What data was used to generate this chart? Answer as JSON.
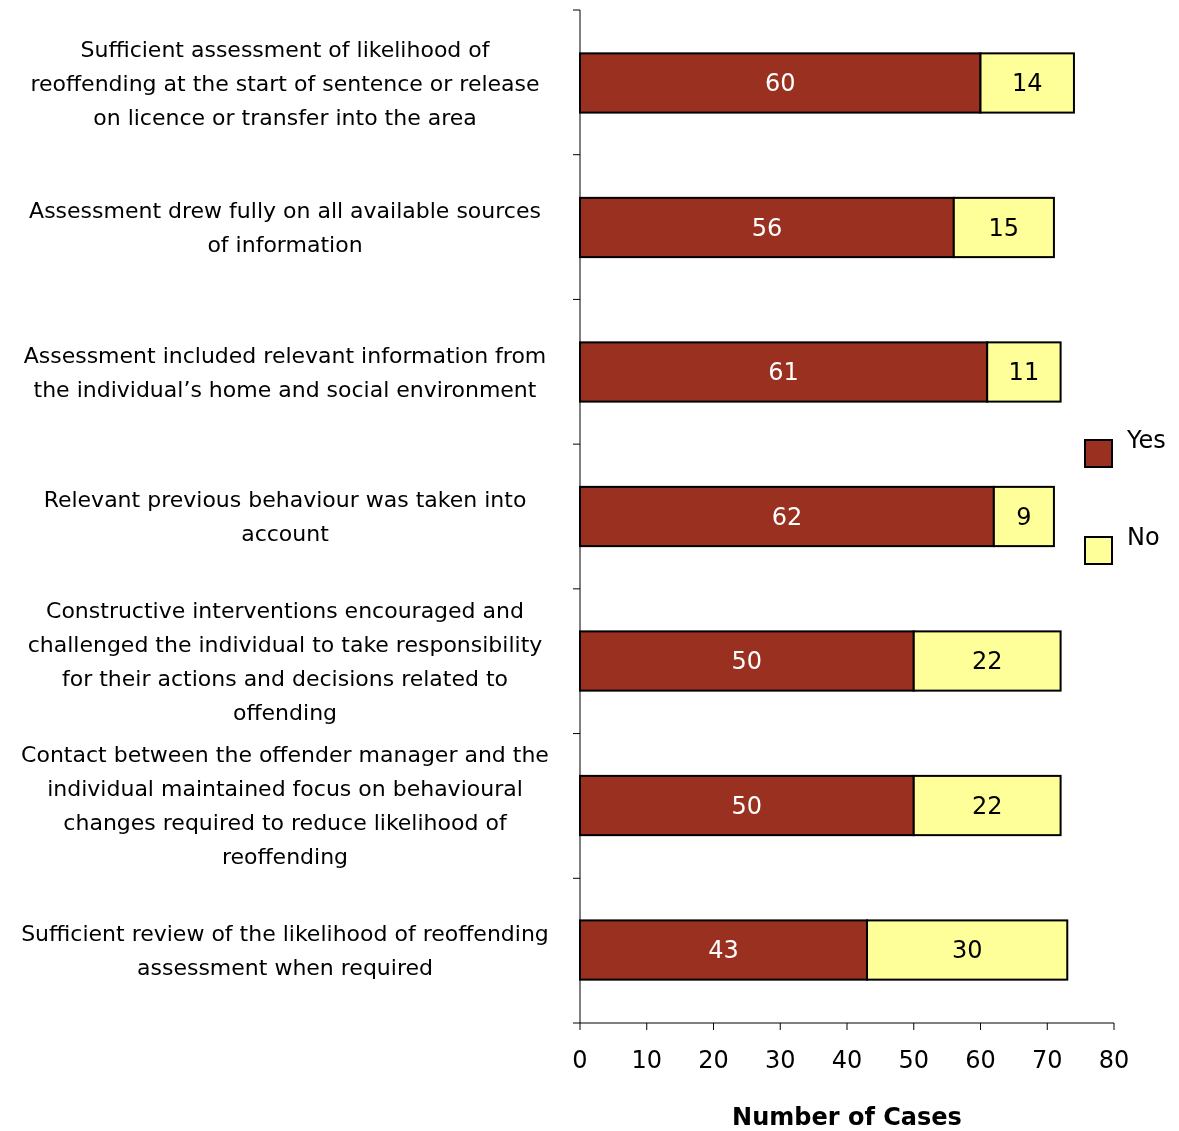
{
  "chart_data": {
    "type": "bar",
    "orientation": "horizontal",
    "stacked": true,
    "xlabel": "Number of Cases",
    "categories": [
      "Sufficient assessment of likelihood of reoffending at the start of sentence or release on licence or transfer into the area",
      "Assessment drew fully on all available sources of information",
      "Assessment included relevant information from the individual’s home and social environment",
      "Relevant previous behaviour was taken into account",
      "Constructive interventions encouraged and challenged the individual to take responsibility for their actions and decisions related to offending",
      "Contact between the offender manager and the individual maintained focus on behavioural changes required to reduce likelihood of reoffending",
      "Sufficient review of the likelihood of reoffending assessment when required"
    ],
    "series": [
      {
        "name": "Yes",
        "color": "#993020",
        "values": [
          60,
          56,
          61,
          62,
          50,
          50,
          43
        ]
      },
      {
        "name": "No",
        "color": "#ffff99",
        "values": [
          14,
          15,
          11,
          9,
          22,
          22,
          30
        ]
      }
    ],
    "xlim": [
      0,
      80
    ],
    "xticks": [
      0,
      10,
      20,
      30,
      40,
      50,
      60,
      70,
      80
    ],
    "data_labels": true,
    "legend": "right"
  }
}
